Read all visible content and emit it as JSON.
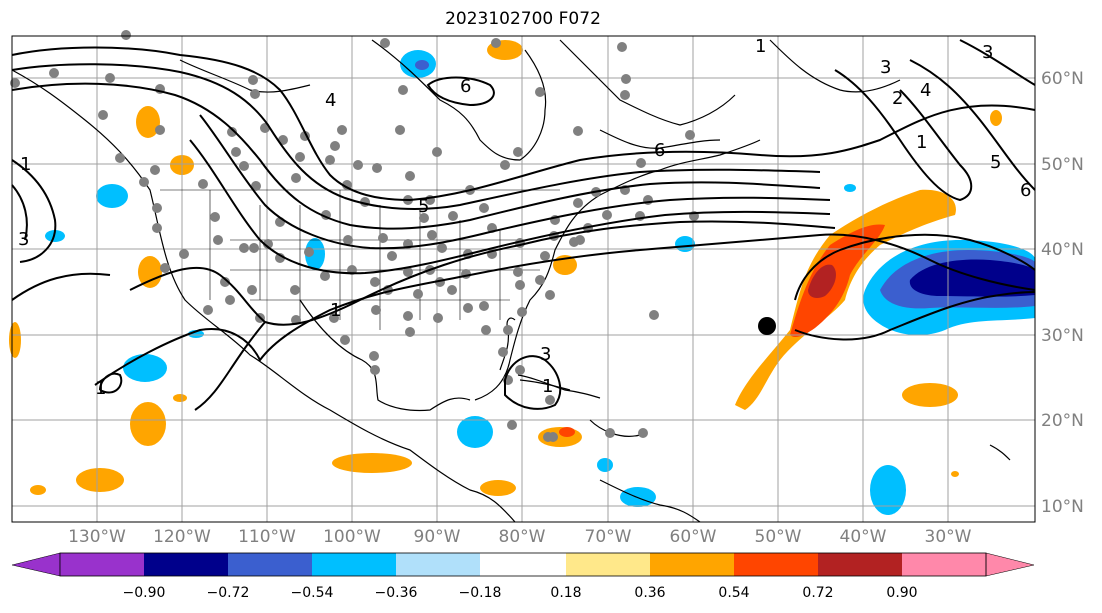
{
  "title": "2023102700 F072",
  "map": {
    "lat_labels": [
      "60°N",
      "50°N",
      "40°N",
      "30°N",
      "20°N",
      "10°N"
    ],
    "lon_labels": [
      "130°W",
      "120°W",
      "110°W",
      "100°W",
      "90°W",
      "80°W",
      "70°W",
      "60°W",
      "50°W",
      "40°W",
      "30°W"
    ],
    "contour_labels": [
      "1",
      "2",
      "3",
      "3",
      "4",
      "4",
      "5",
      "5",
      "6",
      "6",
      "6",
      "1",
      "1",
      "1",
      "1",
      "1",
      "3",
      "3"
    ],
    "land_color": "#ffffff",
    "grid_color": "#a0a0a0"
  },
  "colorbar": {
    "tick_labels": [
      "−0.90",
      "−0.72",
      "−0.54",
      "−0.36",
      "−0.18",
      "0.18",
      "0.36",
      "0.54",
      "0.72",
      "0.90"
    ],
    "colors": [
      "#9932cc",
      "#00008b",
      "#3b5fcf",
      "#00bfff",
      "#b0e0fa",
      "#ffffff",
      "#ffe88a",
      "#ffa500",
      "#ff4500",
      "#b22222",
      "#ff88aa"
    ]
  }
}
